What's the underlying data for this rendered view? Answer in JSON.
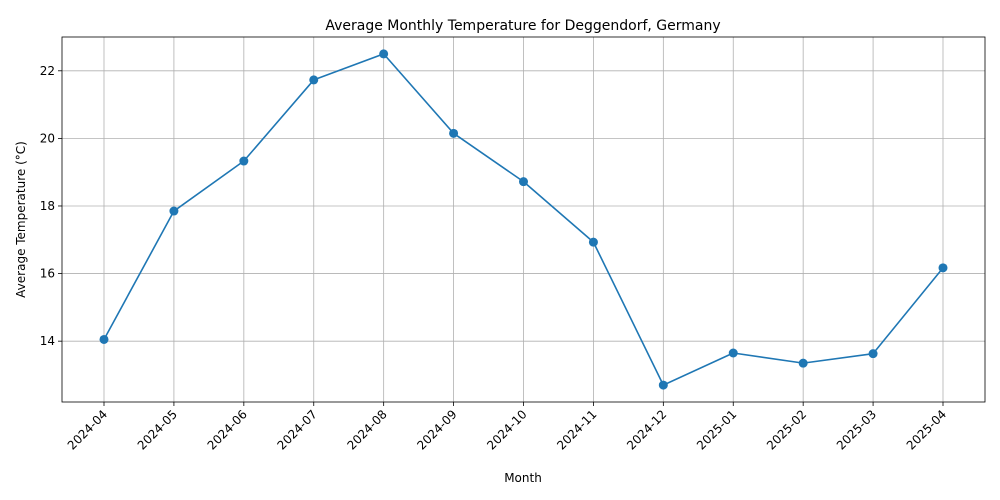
{
  "chart_data": {
    "type": "line",
    "title": "Average Monthly Temperature for Deggendorf, Germany",
    "xlabel": "Month",
    "ylabel": "Average Temperature (°C)",
    "categories": [
      "2024-04",
      "2024-05",
      "2024-06",
      "2024-07",
      "2024-08",
      "2024-09",
      "2024-10",
      "2024-11",
      "2024-12",
      "2025-01",
      "2025-02",
      "2025-03",
      "2025-04"
    ],
    "values": [
      14.05,
      17.85,
      19.33,
      21.73,
      22.5,
      20.15,
      18.72,
      16.93,
      12.7,
      13.65,
      13.35,
      13.63,
      16.17
    ],
    "yticks": [
      14,
      16,
      18,
      20,
      22
    ],
    "ylim": [
      12.2,
      23.0
    ],
    "grid": true,
    "line_color": "#1f77b4",
    "marker": "circle"
  }
}
